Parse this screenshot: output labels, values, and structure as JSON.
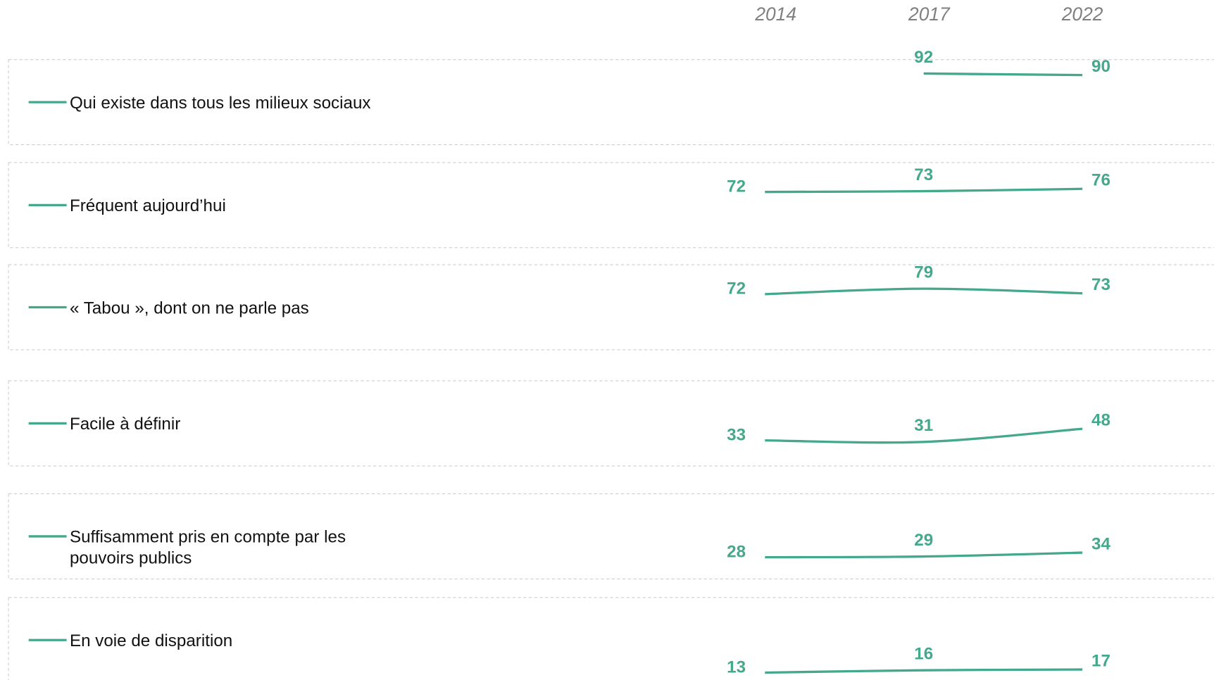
{
  "chart_data": {
    "type": "line",
    "x": [
      "2014",
      "2017",
      "2022"
    ],
    "ylim": [
      0,
      110
    ],
    "series": [
      {
        "name": "Qui existe dans tous les milieux sociaux",
        "color": "#44a88c",
        "values": [
          null,
          92,
          90
        ]
      },
      {
        "name": "Fréquent aujourd’hui",
        "color": "#44a88c",
        "values": [
          72,
          73,
          76
        ]
      },
      {
        "name": "« Tabou », dont on ne parle pas",
        "color": "#44a88c",
        "values": [
          72,
          79,
          73
        ]
      },
      {
        "name": "Facile à définir",
        "color": "#44a88c",
        "values": [
          33,
          31,
          48
        ]
      },
      {
        "name": "Suffisamment pris en compte par les pouvoirs publics",
        "color": "#44a88c",
        "values": [
          28,
          29,
          34
        ]
      },
      {
        "name": "En voie de disparition",
        "color": "#44a88c",
        "values": [
          13,
          16,
          17
        ]
      }
    ]
  }
}
